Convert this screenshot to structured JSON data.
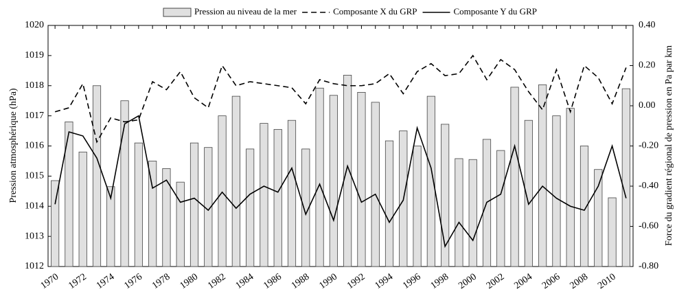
{
  "chart_data": {
    "type": "bar-line",
    "y_label": "Pression atmosphérique (hPa)",
    "y2_label": "Force du gradient régional de pression en Pa par km",
    "categories": [
      "1970",
      null,
      "1972",
      null,
      "1974",
      null,
      "1976",
      null,
      "1978",
      null,
      "1980",
      null,
      "1982",
      null,
      "1984",
      null,
      "1986",
      null,
      "1988",
      null,
      "1990",
      null,
      "1992",
      null,
      "1994",
      null,
      "1996",
      null,
      "1998",
      null,
      "2000",
      null,
      "2002",
      null,
      "2004",
      null,
      "2006",
      null,
      "2008",
      null,
      "2010",
      null
    ],
    "series": [
      {
        "name": "Pression au niveau de la mer",
        "kind": "bar",
        "color": "#e0e0e0",
        "values": [
          1014.85,
          1016.8,
          1015.8,
          1018.0,
          1014.65,
          1017.5,
          1016.1,
          1015.5,
          1015.25,
          1014.8,
          1016.1,
          1015.95,
          1017.0,
          1017.65,
          1015.9,
          1016.75,
          1016.55,
          1016.85,
          1015.9,
          1017.92,
          1017.68,
          1018.35,
          1017.78,
          1017.45,
          1016.17,
          1016.5,
          1016.0,
          1017.65,
          1016.72,
          1015.58,
          1015.55,
          1016.22,
          1015.85,
          1017.95,
          1016.85,
          1018.03,
          1017.0,
          1017.25,
          1016.0,
          1015.22,
          1014.28,
          1017.9
        ]
      },
      {
        "name": "Composante X du GRP",
        "kind": "line",
        "dash": true,
        "axis": "y2",
        "color": "#000000",
        "values": [
          -0.03,
          -0.01,
          0.11,
          -0.18,
          -0.06,
          -0.08,
          -0.07,
          0.12,
          0.08,
          0.17,
          0.04,
          -0.01,
          0.2,
          0.1,
          0.12,
          0.11,
          0.1,
          0.09,
          0.01,
          0.13,
          0.11,
          0.1,
          0.1,
          0.11,
          0.16,
          0.06,
          0.17,
          0.21,
          0.15,
          0.16,
          0.25,
          0.13,
          0.23,
          0.18,
          0.07,
          -0.02,
          0.18,
          -0.03,
          0.2,
          0.14,
          0.01,
          0.19
        ]
      },
      {
        "name": "Composante Y du GRP",
        "kind": "line",
        "dash": false,
        "axis": "y2",
        "color": "#000000",
        "values": [
          -0.49,
          -0.13,
          -0.15,
          -0.26,
          -0.46,
          -0.09,
          -0.05,
          -0.41,
          -0.37,
          -0.48,
          -0.46,
          -0.52,
          -0.43,
          -0.51,
          -0.44,
          -0.4,
          -0.43,
          -0.31,
          -0.54,
          -0.39,
          -0.57,
          -0.3,
          -0.48,
          -0.44,
          -0.58,
          -0.47,
          -0.11,
          -0.31,
          -0.7,
          -0.58,
          -0.67,
          -0.48,
          -0.44,
          -0.2,
          -0.49,
          -0.4,
          -0.46,
          -0.5,
          -0.52,
          -0.4,
          -0.2,
          -0.46
        ]
      }
    ],
    "ylim": [
      1012,
      1020
    ],
    "yticks": [
      1012,
      1013,
      1014,
      1015,
      1016,
      1017,
      1018,
      1019,
      1020
    ],
    "y2lim": [
      -0.8,
      0.4
    ],
    "y2ticks": [
      {
        "value": -0.8,
        "label": "-0.80"
      },
      {
        "value": -0.6,
        "label": "-0.60"
      },
      {
        "value": -0.4,
        "label": "-0.40"
      },
      {
        "value": -0.2,
        "label": "-0.20"
      },
      {
        "value": 0,
        "label": "0.00"
      },
      {
        "value": 0.2,
        "label": "0.20"
      },
      {
        "value": 0.4,
        "label": "0.40"
      }
    ],
    "grid": false,
    "legend": "top"
  }
}
